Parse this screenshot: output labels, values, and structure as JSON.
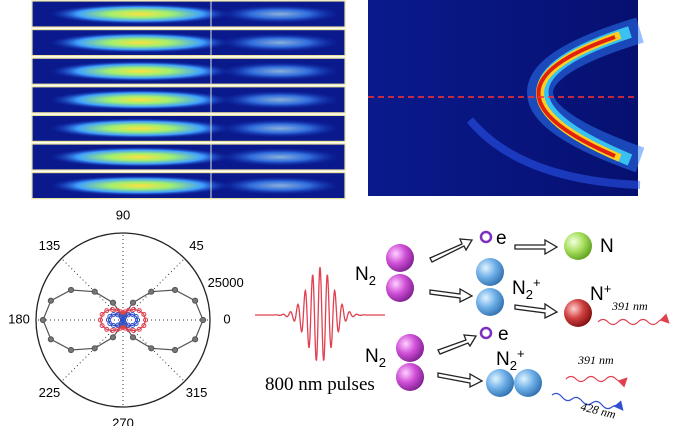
{
  "polar_plot": {
    "type": "polar",
    "theta": [
      0,
      15,
      30,
      45,
      60,
      75,
      90,
      105,
      120,
      135,
      150,
      165,
      180,
      195,
      210,
      225,
      240,
      255,
      270,
      285,
      300,
      315,
      330,
      345
    ],
    "rlim": [
      0,
      25000
    ],
    "rticks": [
      25000
    ],
    "thetaticks": [
      0,
      45,
      90,
      135,
      180,
      225,
      270,
      315
    ],
    "series": [
      {
        "color": "#555555",
        "values": [
          23000,
          21460,
          17250,
          11500,
          5750,
          1540,
          0,
          1540,
          5750,
          11500,
          17250,
          21460,
          23000,
          21460,
          17250,
          11500,
          5750,
          1540,
          0,
          1540,
          5750,
          11500,
          17250,
          21460
        ]
      },
      {
        "color": "#e04050",
        "values": [
          6500,
          6200,
          5400,
          4300,
          3200,
          2400,
          2100,
          2400,
          3200,
          4300,
          5400,
          6200,
          6500,
          6200,
          5400,
          4300,
          3200,
          2400,
          2100,
          2400,
          3200,
          4300,
          5400,
          6200
        ]
      },
      {
        "color": "#3050d0",
        "values": [
          4200,
          3900,
          3150,
          2100,
          1050,
          280,
          0,
          280,
          1050,
          2100,
          3150,
          3900,
          4200,
          3900,
          3150,
          2100,
          1050,
          280,
          0,
          280,
          1050,
          2100,
          3150,
          3900
        ]
      }
    ]
  },
  "diagram": {
    "pulse_label": "800 nm pulses",
    "molecule_1": {
      "symbol": "N",
      "sub": "2"
    },
    "electron_1": "e",
    "ion_1": {
      "symbol": "N",
      "sub": "2",
      "sup": "+"
    },
    "atom": "N",
    "ion_2": {
      "symbol": "N",
      "sup": "+"
    },
    "emission_1": "391 nm",
    "molecule_2": {
      "symbol": "N",
      "sub": "2"
    },
    "electron_2": "e",
    "ion_3": {
      "symbol": "N",
      "sub": "2",
      "sup": "+"
    },
    "emission_2": "391 nm",
    "emission_3": "428 nm"
  }
}
